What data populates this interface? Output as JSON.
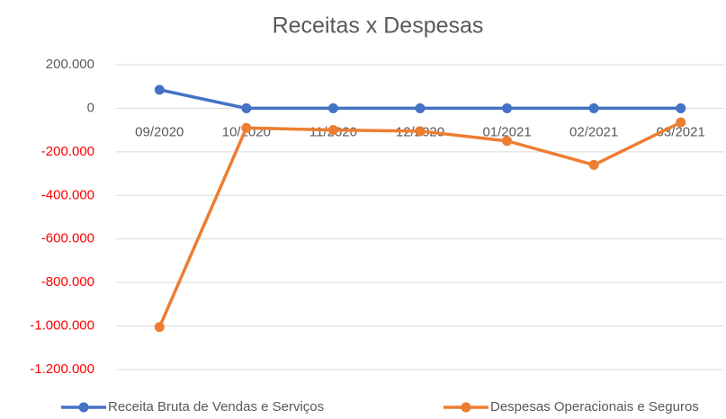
{
  "chart_data": {
    "type": "line",
    "title": "Receitas x Despesas",
    "categories": [
      "09/2020",
      "10/2020",
      "11/2020",
      "12/2020",
      "01/2021",
      "02/2021",
      "03/2021"
    ],
    "series": [
      {
        "name": "Receita Bruta de Vendas e Serviços",
        "color": "#4472c4",
        "values": [
          85000,
          0,
          0,
          0,
          0,
          0,
          0
        ]
      },
      {
        "name": "Despesas Operacionais e Seguros",
        "color": "#ed7d31",
        "values": [
          -1005000,
          -90000,
          -100000,
          -105000,
          -150000,
          -260000,
          -65000
        ]
      }
    ],
    "ylim": [
      -1200000,
      200000
    ],
    "yticks": [
      {
        "value": 200000,
        "label": "200.000"
      },
      {
        "value": 0,
        "label": "0"
      },
      {
        "value": -200000,
        "label": "-200.000"
      },
      {
        "value": -400000,
        "label": "-400.000"
      },
      {
        "value": -600000,
        "label": "-600.000"
      },
      {
        "value": -800000,
        "label": "-800.000"
      },
      {
        "value": -1000000,
        "label": "-1.000.000"
      },
      {
        "value": -1200000,
        "label": "-1.200.000"
      }
    ],
    "negative_tick_color": "#ff0000",
    "grid": true,
    "legend": "bottom"
  }
}
